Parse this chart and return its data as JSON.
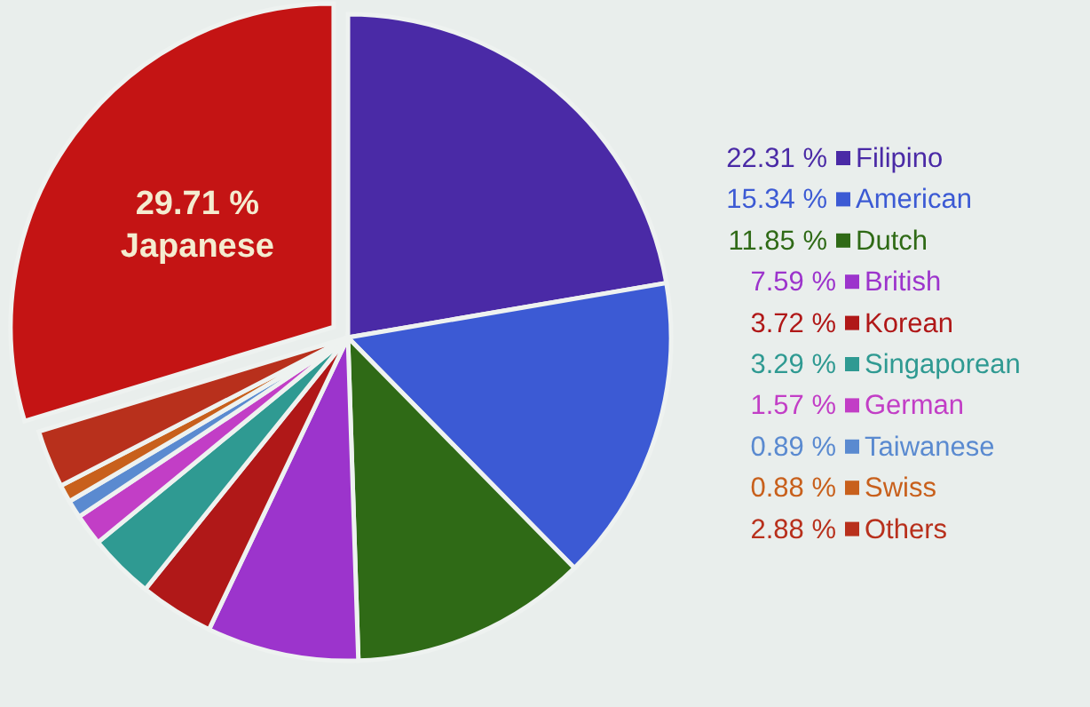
{
  "chart_data": {
    "type": "pie",
    "categories": [
      "Filipino",
      "American",
      "Dutch",
      "British",
      "Korean",
      "Singaporean",
      "German",
      "Taiwanese",
      "Swiss",
      "Others",
      "Japanese"
    ],
    "values": [
      22.31,
      15.34,
      11.85,
      7.59,
      3.72,
      3.29,
      1.57,
      0.89,
      0.88,
      2.88,
      29.71
    ],
    "value_labels": [
      "22.31 %",
      "15.34 %",
      "11.85 %",
      "7.59 %",
      "3.72 %",
      "3.29 %",
      "1.57 %",
      "0.89 %",
      "0.88 %",
      "2.88 %",
      "29.71 %"
    ],
    "colors": [
      "#4a2aa6",
      "#3c5ad4",
      "#2f6a16",
      "#9c34cc",
      "#b01818",
      "#2f9a92",
      "#c23ec6",
      "#5a8ad0",
      "#c8601c",
      "#b8301c",
      "#c41414"
    ],
    "legend": "right"
  }
}
